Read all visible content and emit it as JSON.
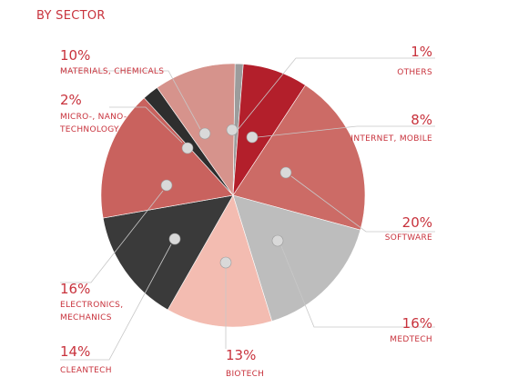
{
  "chart_data": {
    "type": "pie",
    "title": "BY SECTOR",
    "slices": [
      {
        "label": "OTHERS",
        "value": 1,
        "value_label": "1%",
        "color": "#9c9c9c"
      },
      {
        "label": "INTERNET, MOBILE",
        "value": 8,
        "value_label": "8%",
        "color": "#b31f2b"
      },
      {
        "label": "SOFTWARE",
        "value": 20,
        "value_label": "20%",
        "color": "#cc6b66"
      },
      {
        "label": "MEDTECH",
        "value": 16,
        "value_label": "16%",
        "color": "#bdbdbd"
      },
      {
        "label": "BIOTECH",
        "value": 13,
        "value_label": "13%",
        "color": "#f3bcb1"
      },
      {
        "label": "CLEANTECH",
        "value": 14,
        "value_label": "14%",
        "color": "#3a3a3a"
      },
      {
        "label": "ELECTRONICS, MECHANICS",
        "value": 16,
        "value_label": "16%",
        "color": "#c9625e"
      },
      {
        "label": "MICRO-, NANO-TECHNOLOGY",
        "value": 2,
        "value_label": "2%",
        "color": "#2e2e2e"
      },
      {
        "label": "MATERIALS, CHEMICALS",
        "value": 10,
        "value_label": "10%",
        "color": "#d6938c"
      }
    ],
    "legend": "none"
  }
}
